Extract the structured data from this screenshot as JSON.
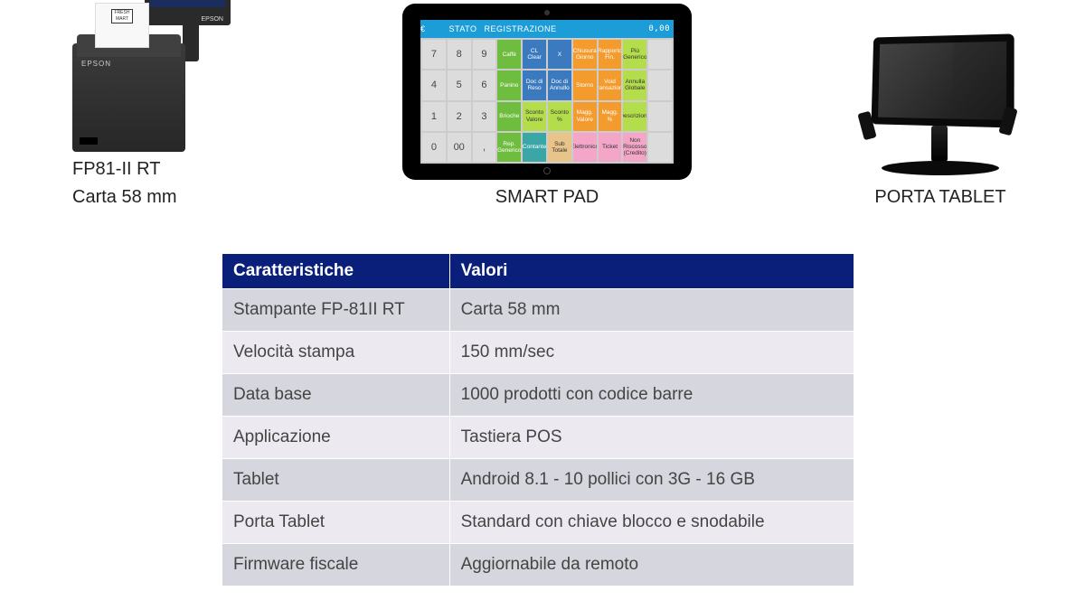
{
  "products": {
    "printer": {
      "label_line1": "FP81-II RT",
      "label_line2": "Carta  58 mm",
      "brand": "EPSON",
      "receipt_logo": "FRESH MART"
    },
    "smartpad": {
      "label": "SMART PAD",
      "status_left": "€",
      "status_amount": "0,00",
      "status_line2a": "STATO",
      "status_line2b": "REGISTRAZIONE",
      "keys": [
        [
          {
            "t": "7",
            "c": "k-num"
          },
          {
            "t": "8",
            "c": "k-num"
          },
          {
            "t": "9",
            "c": "k-num"
          },
          {
            "t": "Caffè",
            "c": "k-green"
          },
          {
            "t": "CL Clear",
            "c": "k-blue"
          },
          {
            "t": "X",
            "c": "k-blue"
          },
          {
            "t": "Chiusura Giorno",
            "c": "k-orange"
          },
          {
            "t": "Rapporto Fin.",
            "c": "k-orange"
          },
          {
            "t": "Più Generico",
            "c": "k-lime"
          },
          {
            "t": "",
            "c": "k-num"
          }
        ],
        [
          {
            "t": "4",
            "c": "k-num"
          },
          {
            "t": "5",
            "c": "k-num"
          },
          {
            "t": "6",
            "c": "k-num"
          },
          {
            "t": "Panino",
            "c": "k-green"
          },
          {
            "t": "Doc di Reso",
            "c": "k-blue"
          },
          {
            "t": "Doc di Annullo",
            "c": "k-blue"
          },
          {
            "t": "Storno",
            "c": "k-orange"
          },
          {
            "t": "Void Transazione",
            "c": "k-orange"
          },
          {
            "t": "Annulla Globale",
            "c": "k-lime"
          },
          {
            "t": "",
            "c": "k-num"
          }
        ],
        [
          {
            "t": "1",
            "c": "k-num"
          },
          {
            "t": "2",
            "c": "k-num"
          },
          {
            "t": "3",
            "c": "k-num"
          },
          {
            "t": "Brioche",
            "c": "k-green"
          },
          {
            "t": "Sconto Valore",
            "c": "k-lime"
          },
          {
            "t": "Sconto %",
            "c": "k-lime"
          },
          {
            "t": "Magg. Valore",
            "c": "k-orange"
          },
          {
            "t": "Magg. %",
            "c": "k-orange"
          },
          {
            "t": "Descrizione",
            "c": "k-lime"
          },
          {
            "t": "",
            "c": "k-num"
          }
        ],
        [
          {
            "t": "0",
            "c": "k-num"
          },
          {
            "t": "00",
            "c": "k-num"
          },
          {
            "t": ",",
            "c": "k-num"
          },
          {
            "t": "Rep. Generico",
            "c": "k-green"
          },
          {
            "t": "Contante",
            "c": "k-teal"
          },
          {
            "t": "Sub Totale",
            "c": "k-tan"
          },
          {
            "t": "Elettronico",
            "c": "k-pink"
          },
          {
            "t": "Ticket",
            "c": "k-pink"
          },
          {
            "t": "Non Riscosso (Credito)",
            "c": "k-pink"
          },
          {
            "t": "",
            "c": "k-num"
          }
        ]
      ]
    },
    "stand": {
      "label": "PORTA TABLET"
    }
  },
  "table": {
    "header_k": "Caratteristiche",
    "header_v": "Valori",
    "header_bg": "#0a1f7a",
    "row_odd_bg": "#d6d6de",
    "row_even_bg": "#eceaf0",
    "text_color": "#444444",
    "fontsize": 19,
    "rows": [
      {
        "k": "Stampante FP-81II RT",
        "v": "Carta 58 mm"
      },
      {
        "k": "Velocità stampa",
        "v": "150 mm/sec"
      },
      {
        "k": "Data base",
        "v": "1000 prodotti con codice barre"
      },
      {
        "k": "Applicazione",
        "v": "Tastiera POS"
      },
      {
        "k": "Tablet",
        "v": "Android 8.1 - 10 pollici con 3G - 16 GB"
      },
      {
        "k": "Porta Tablet",
        "v": "Standard con chiave blocco e snodabile"
      },
      {
        "k": "Firmware fiscale",
        "v": "Aggiornabile da remoto"
      }
    ]
  }
}
